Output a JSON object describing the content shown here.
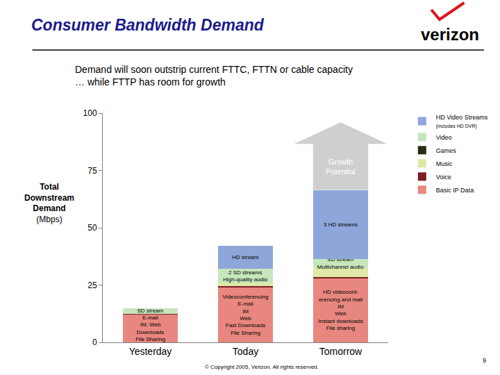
{
  "chart_data": {
    "type": "bar",
    "stacked": true,
    "title": "Consumer Bandwidth Demand",
    "subtitle": "Demand will soon outstrip current FTTC, FTTN or cable capacity\n… while FTTP has room for growth",
    "y_label": "Total\nDownstream\nDemand\n(Mbps)",
    "categories": [
      "Yesterday",
      "Today",
      "Tomorrow"
    ],
    "series": [
      {
        "name": "Basic IP Data",
        "color": "#e8877f",
        "values": [
          12,
          24,
          28
        ],
        "labels": [
          "E-mail\nIM, Web\nDownloads\nFile Sharing",
          "Videoconferencing\nE-mail\nIM\nWeb\nFast Downloads\nFile Sharing",
          "HD videoconf-\nerencing and mail\nIM\nWeb\nInstant downloads\nFile sharing"
        ]
      },
      {
        "name": "Voice",
        "color": "#7a1e22",
        "values": [
          0.5,
          0.5,
          0.5
        ]
      },
      {
        "name": "Music",
        "color": "#dfe9a6",
        "values": [
          0,
          1.5,
          4
        ]
      },
      {
        "name": "Games",
        "color": "#2b2b12",
        "values": [
          0,
          0,
          0
        ]
      },
      {
        "name": "Video",
        "color": "#c6e6bd",
        "values": [
          2.5,
          6,
          4
        ],
        "labels": [
          "SD stream",
          "2 SD streams\nHigh-quality audio",
          "SD stream\nMultichannel audio"
        ]
      },
      {
        "name": "HD Video Streams\n(includes HD DVR)",
        "color": "#8ea6da",
        "values": [
          0,
          10,
          30
        ],
        "labels": [
          null,
          "HD stream",
          "3 HD streams"
        ]
      }
    ],
    "ylim": [
      0,
      100
    ],
    "yticks": [
      0,
      25,
      50,
      75,
      100
    ],
    "grid": false,
    "legend": "right",
    "annotations": [
      {
        "category": "Tomorrow",
        "text": "Growth\nPotential"
      }
    ],
    "logo": "verizon",
    "footer": "© Copyright 2005, Verizon. All rights reserved.",
    "page_number": "9"
  }
}
